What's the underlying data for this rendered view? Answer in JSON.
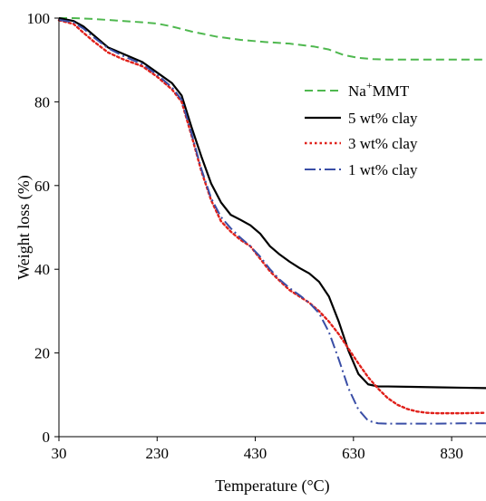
{
  "chart_data": {
    "type": "line",
    "title": "",
    "xlabel": "Temperature (°C)",
    "ylabel": "Weight loss (%)",
    "xlim": [
      30,
      900
    ],
    "ylim": [
      0,
      100
    ],
    "x_ticks": [
      30,
      230,
      430,
      630,
      830
    ],
    "y_ticks": [
      0,
      20,
      40,
      60,
      80,
      100
    ],
    "grid": false,
    "legend_position": "top-right",
    "series": [
      {
        "name_main": "Na",
        "name_sup": "+",
        "name_rest": "MMT",
        "name": "Na+MMT",
        "color": "#4fb84f",
        "dash": "dashed",
        "x": [
          30,
          60,
          100,
          150,
          200,
          230,
          260,
          300,
          350,
          400,
          450,
          500,
          550,
          580,
          610,
          640,
          670,
          700,
          750,
          800,
          850,
          900
        ],
        "y": [
          100,
          100,
          99.8,
          99.4,
          99,
          98.7,
          98,
          96.8,
          95.6,
          94.8,
          94.3,
          93.9,
          93.2,
          92.5,
          91.2,
          90.5,
          90.2,
          90.1,
          90.1,
          90.1,
          90.1,
          90.1
        ]
      },
      {
        "name": "5 wt% clay",
        "color": "#000000",
        "dash": "solid",
        "x": [
          30,
          60,
          80,
          100,
          130,
          160,
          200,
          230,
          260,
          280,
          300,
          320,
          340,
          360,
          380,
          400,
          420,
          440,
          460,
          480,
          500,
          520,
          540,
          560,
          580,
          600,
          620,
          640,
          660,
          680,
          700,
          750,
          800,
          850,
          900
        ],
        "y": [
          100,
          99.3,
          98,
          96,
          93,
          91.5,
          89.5,
          87,
          84.5,
          81.5,
          74,
          67,
          60.5,
          56,
          53,
          51.8,
          50.5,
          48.5,
          45.5,
          43.5,
          41.8,
          40.3,
          39,
          37,
          33.5,
          27.5,
          20.5,
          15,
          12.5,
          12,
          12,
          11.9,
          11.8,
          11.7,
          11.6
        ]
      },
      {
        "name": "3 wt% clay",
        "color": "#e0201a",
        "dash": "dotted",
        "x": [
          30,
          60,
          80,
          100,
          130,
          160,
          200,
          230,
          260,
          280,
          300,
          320,
          340,
          360,
          380,
          400,
          420,
          440,
          460,
          480,
          500,
          520,
          540,
          560,
          580,
          600,
          620,
          640,
          660,
          680,
          700,
          720,
          740,
          760,
          780,
          800,
          850,
          900
        ],
        "y": [
          99.5,
          98.6,
          96.5,
          94.5,
          91.8,
          90.2,
          88.5,
          86,
          83,
          80,
          72,
          63.5,
          56.5,
          51.5,
          49,
          47,
          45.5,
          42.5,
          39.5,
          37.2,
          35,
          33.5,
          32,
          30,
          27.5,
          24.5,
          21,
          17.5,
          14.2,
          11.5,
          9.2,
          7.6,
          6.6,
          6,
          5.7,
          5.6,
          5.6,
          5.7
        ]
      },
      {
        "name": "1 wt% clay",
        "color": "#3a4ea6",
        "dash": "dashdot",
        "x": [
          30,
          60,
          80,
          100,
          130,
          160,
          200,
          230,
          260,
          280,
          300,
          320,
          340,
          360,
          380,
          400,
          420,
          440,
          460,
          480,
          500,
          520,
          540,
          560,
          580,
          600,
          620,
          640,
          660,
          680,
          700,
          750,
          800,
          850,
          900
        ],
        "y": [
          99.6,
          99,
          97.5,
          95.5,
          92.8,
          91,
          89,
          86.5,
          83.5,
          80.5,
          72.5,
          64,
          57,
          52.5,
          49.8,
          47.5,
          45.5,
          43,
          40,
          37.5,
          35.5,
          33.8,
          32,
          29.5,
          25,
          18.5,
          11.5,
          6.5,
          3.8,
          3.2,
          3.1,
          3.1,
          3.1,
          3.2,
          3.2
        ]
      }
    ]
  }
}
